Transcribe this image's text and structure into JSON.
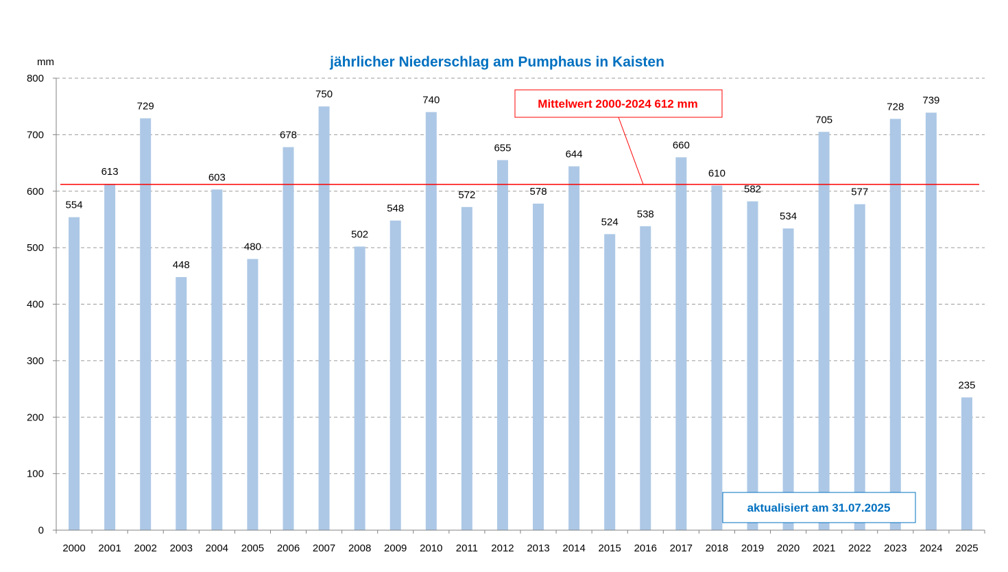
{
  "chart_data": {
    "type": "bar",
    "title": "jährlicher Niederschlag am Pumphaus in Kaisten",
    "ylabel": "mm",
    "ylim": [
      0,
      800
    ],
    "yticks": [
      0,
      100,
      200,
      300,
      400,
      500,
      600,
      700,
      800
    ],
    "grid": true,
    "categories": [
      "2000",
      "2001",
      "2002",
      "2003",
      "2004",
      "2005",
      "2006",
      "2007",
      "2008",
      "2009",
      "2010",
      "2011",
      "2012",
      "2013",
      "2014",
      "2015",
      "2016",
      "2017",
      "2018",
      "2019",
      "2020",
      "2021",
      "2022",
      "2023",
      "2024",
      "2025"
    ],
    "values": [
      554,
      613,
      729,
      448,
      603,
      480,
      678,
      750,
      502,
      548,
      740,
      572,
      655,
      578,
      644,
      524,
      538,
      660,
      610,
      582,
      534,
      705,
      577,
      728,
      739,
      235
    ],
    "mean_line": {
      "value": 612,
      "label": "Mittelwert 2000-2024  612 mm"
    },
    "note": "aktualisiert am 31.07.2025"
  },
  "colors": {
    "bar": "#adc8e6",
    "title": "#0070c0",
    "mean_line": "#ff0000",
    "mean_label": "#ff0000",
    "note_text": "#0070c0",
    "note_border": "#0070c0",
    "grid": "#9a9a9a"
  }
}
